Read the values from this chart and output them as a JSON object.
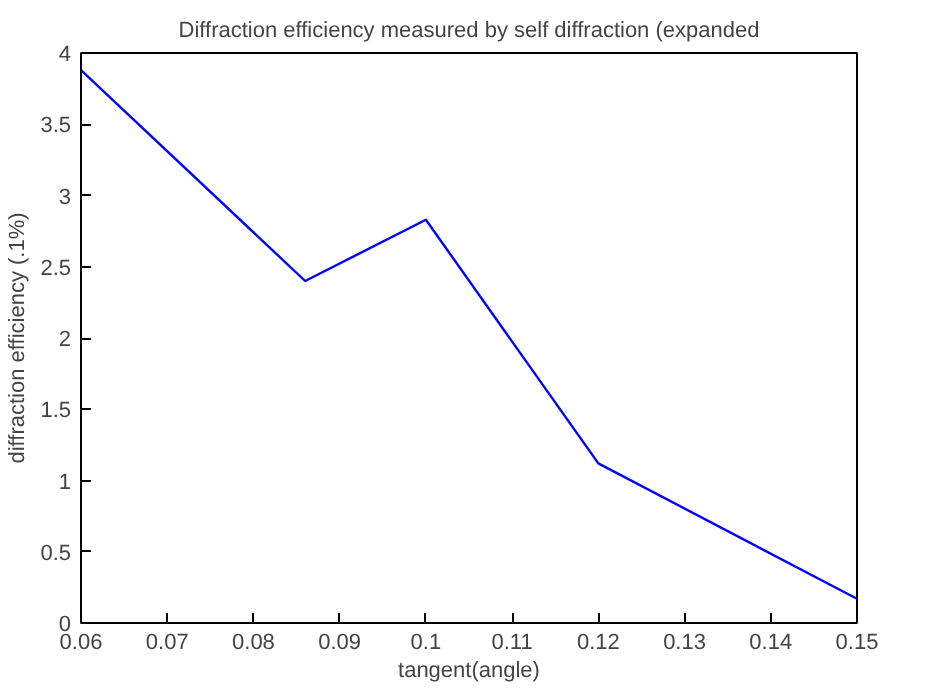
{
  "chart_data": {
    "type": "line",
    "title": "Diffraction efficiency measured by self diffraction (expanded",
    "xlabel": "tangent(angle)",
    "ylabel": "diffraction efficiency (.1%)",
    "x": [
      0.06,
      0.086,
      0.1,
      0.12,
      0.15
    ],
    "series": [
      {
        "color": "#0000ff",
        "values": [
          3.88,
          2.4,
          2.83,
          1.12,
          0.17
        ]
      }
    ],
    "xlim": [
      0.06,
      0.15
    ],
    "xticks": [
      {
        "value": 0.06,
        "label": "0.06"
      },
      {
        "value": 0.07,
        "label": "0.07"
      },
      {
        "value": 0.08,
        "label": "0.08"
      },
      {
        "value": 0.09,
        "label": "0.09"
      },
      {
        "value": 0.1,
        "label": "0.1"
      },
      {
        "value": 0.11,
        "label": "0.11"
      },
      {
        "value": 0.12,
        "label": "0.12"
      },
      {
        "value": 0.13,
        "label": "0.13"
      },
      {
        "value": 0.14,
        "label": "0.14"
      },
      {
        "value": 0.15,
        "label": "0.15"
      }
    ],
    "ylim": [
      0,
      4
    ],
    "yticks": [
      0,
      {
        "value": 0.5,
        "label": "0.5"
      },
      1,
      {
        "value": 1.5,
        "label": "1.5"
      },
      2,
      {
        "value": 2.5,
        "label": "2.5"
      },
      3,
      {
        "value": 3.5,
        "label": "3.5"
      },
      4
    ],
    "grid": false,
    "marker": "none",
    "line_style": "solid"
  }
}
